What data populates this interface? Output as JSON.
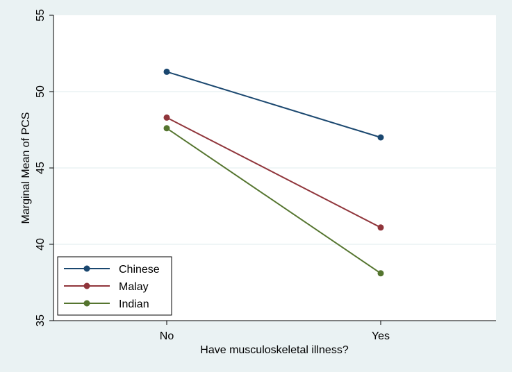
{
  "chart_data": {
    "type": "line",
    "title": "",
    "xlabel": "Have musculoskeletal illness?",
    "ylabel": "Marginal Mean of PCS",
    "categories": [
      "No",
      "Yes"
    ],
    "ylim": [
      35,
      55
    ],
    "yticks": [
      35,
      40,
      45,
      50,
      55
    ],
    "grid": true,
    "legend_position": "bottom-left",
    "series": [
      {
        "name": "Chinese",
        "values": [
          51.3,
          47.0
        ],
        "color": "#1a476f"
      },
      {
        "name": "Malay",
        "values": [
          48.3,
          41.1
        ],
        "color": "#90353b"
      },
      {
        "name": "Indian",
        "values": [
          47.6,
          38.1
        ],
        "color": "#55752f"
      }
    ]
  }
}
